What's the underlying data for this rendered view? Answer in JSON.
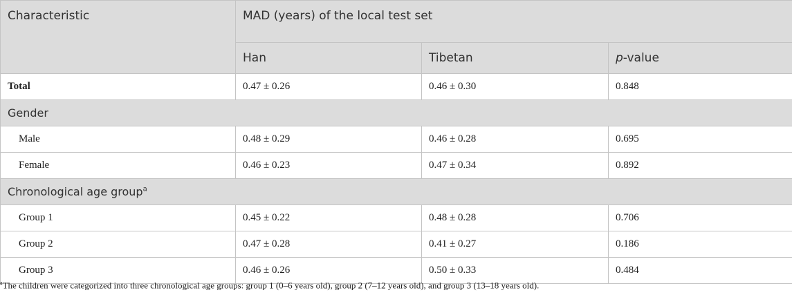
{
  "table": {
    "header": {
      "characteristic": "Characteristic",
      "group": "MAD (years) of the local test set",
      "columns": [
        "Han",
        "Tibetan",
        "p-value"
      ]
    },
    "total": {
      "label": "Total",
      "values": [
        "0.47 ± 0.26",
        "0.46 ± 0.30",
        0.848
      ]
    },
    "sections": [
      {
        "label": "Gender",
        "rows": [
          {
            "label": "Male",
            "values": [
              "0.48 ± 0.29",
              "0.46 ± 0.28",
              0.695
            ]
          },
          {
            "label": "Female",
            "values": [
              "0.46 ± 0.23",
              "0.47 ± 0.34",
              0.892
            ]
          }
        ]
      },
      {
        "label": "Chronological age group",
        "marker": "a",
        "rows": [
          {
            "label": "Group 1",
            "values": [
              "0.45 ± 0.22",
              "0.48 ± 0.28",
              0.706
            ]
          },
          {
            "label": "Group 2",
            "values": [
              "0.47 ± 0.28",
              "0.41 ± 0.27",
              0.186
            ]
          },
          {
            "label": "Group 3",
            "values": [
              "0.46 ± 0.26",
              "0.50 ± 0.33",
              0.484
            ]
          }
        ]
      }
    ],
    "footnote": {
      "marker": "a",
      "text": "The children were categorized into three chronological age groups: group 1 (0–6 years old), group 2 (7–12 years old), and group 3 (13–18 years old)."
    }
  }
}
